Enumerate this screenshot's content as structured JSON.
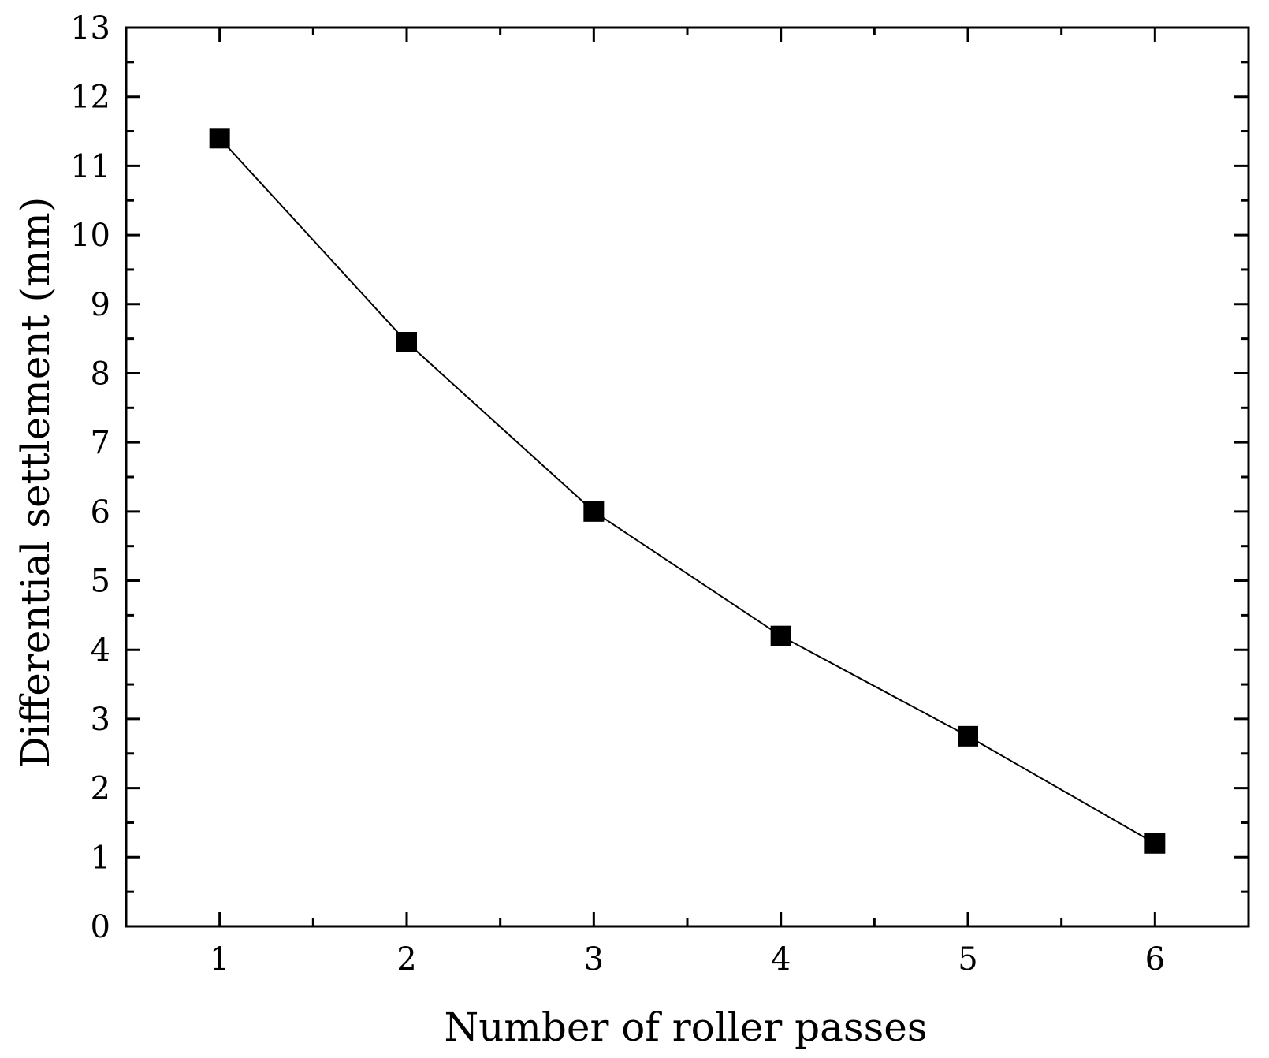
{
  "chart_data": {
    "type": "line",
    "title": "",
    "xlabel": "Number of roller passes",
    "ylabel": "Differential settlement (mm)",
    "x": [
      1,
      2,
      3,
      4,
      5,
      6
    ],
    "series": [
      {
        "values": [
          11.4,
          8.45,
          6.0,
          4.2,
          2.75,
          1.2
        ]
      }
    ],
    "xlim": [
      0.5,
      6.5
    ],
    "ylim": [
      0,
      13
    ],
    "xticks": [
      1,
      2,
      3,
      4,
      5,
      6
    ],
    "yticks": [
      0,
      1,
      2,
      3,
      4,
      5,
      6,
      7,
      8,
      9,
      10,
      11,
      12,
      13
    ],
    "grid": false,
    "marker": "square",
    "colors": {
      "line": "#000000",
      "marker": "#000000",
      "frame": "#000000"
    }
  }
}
